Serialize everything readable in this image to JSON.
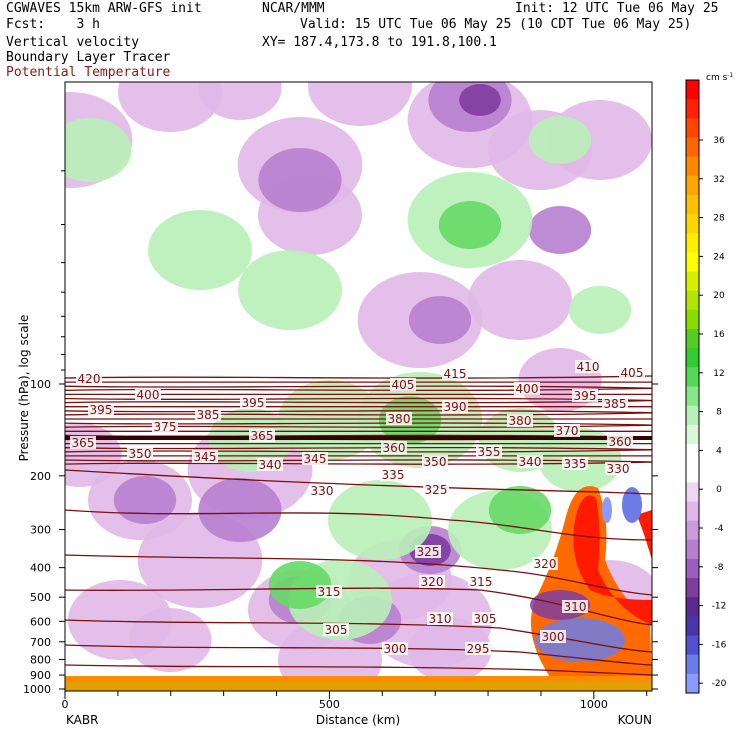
{
  "header": {
    "left_title": "CGWAVES 15km ARW-GFS init",
    "center_title": "NCAR/MMM",
    "init": "Init: 12 UTC Tue 06 May 25",
    "fcst": "Fcst:    3 h",
    "valid": "Valid: 15 UTC Tue 06 May 25 (10 CDT Tue 06 May 25)",
    "xy": "XY= 187.4,173.8 to 191.8,100.1",
    "variables": [
      "Vertical velocity",
      "Boundary Layer Tracer",
      "Potential Temperature"
    ]
  },
  "colors": {
    "theta_lines": "#7a0f0f",
    "pt_label": "#8b1a1a",
    "downward_light": "#e0b8e8",
    "downward_mid": "#b77fcf",
    "downward_dark": "#7e3d9f",
    "downward_blue": "#6c7ce8",
    "upward_light": "#b8f0b8",
    "upward_mid": "#66d966",
    "upward_strong": "#ff2b00"
  },
  "chart_data": {
    "type": "cross-section",
    "xlabel": "Distance (km)",
    "ylabel": "Pressure (hPa), log scale",
    "x_ticks": [
      0,
      500,
      1000
    ],
    "xlim": [
      0,
      1110
    ],
    "x_endpoints": {
      "left": "KABR",
      "right": "KOUN"
    },
    "y_ticks": [
      100,
      200,
      300,
      400,
      500,
      600,
      700,
      800,
      900,
      1000
    ],
    "y_scale": "log",
    "colorbar": {
      "units": "cm s-1",
      "ticks": [
        36,
        32,
        28,
        24,
        20,
        16,
        12,
        8,
        4,
        0,
        -4,
        -8,
        -12,
        -16,
        -20
      ],
      "colors": [
        "#ff0000",
        "#ff2200",
        "#ff4500",
        "#ff6600",
        "#ff8800",
        "#ffa500",
        "#ffc000",
        "#ffd700",
        "#ffee00",
        "#ffff00",
        "#d8f000",
        "#b0e600",
        "#88dc00",
        "#55cc22",
        "#33cc33",
        "#55d955",
        "#88e688",
        "#b8f0b8",
        "#d9f8d9",
        "#ffffff",
        "#ffffff",
        "#f0d6f5",
        "#e0b8e8",
        "#cc99dd",
        "#b77fcf",
        "#9d5cbf",
        "#7e3d9f",
        "#5a2a8f",
        "#4a35a8",
        "#5050d0",
        "#6c7ce8",
        "#8a9aff"
      ]
    },
    "theta_labels": [
      "420",
      "415",
      "410",
      "405",
      "405",
      "400",
      "400",
      "395",
      "395",
      "395",
      "390",
      "385",
      "385",
      "380",
      "380",
      "375",
      "370",
      "365",
      "365",
      "360",
      "360",
      "355",
      "350",
      "350",
      "345",
      "345",
      "340",
      "340",
      "335",
      "335",
      "330",
      "330",
      "325",
      "325",
      "320",
      "320",
      "315",
      "315",
      "310",
      "310",
      "305",
      "305",
      "300",
      "300",
      "295"
    ]
  }
}
